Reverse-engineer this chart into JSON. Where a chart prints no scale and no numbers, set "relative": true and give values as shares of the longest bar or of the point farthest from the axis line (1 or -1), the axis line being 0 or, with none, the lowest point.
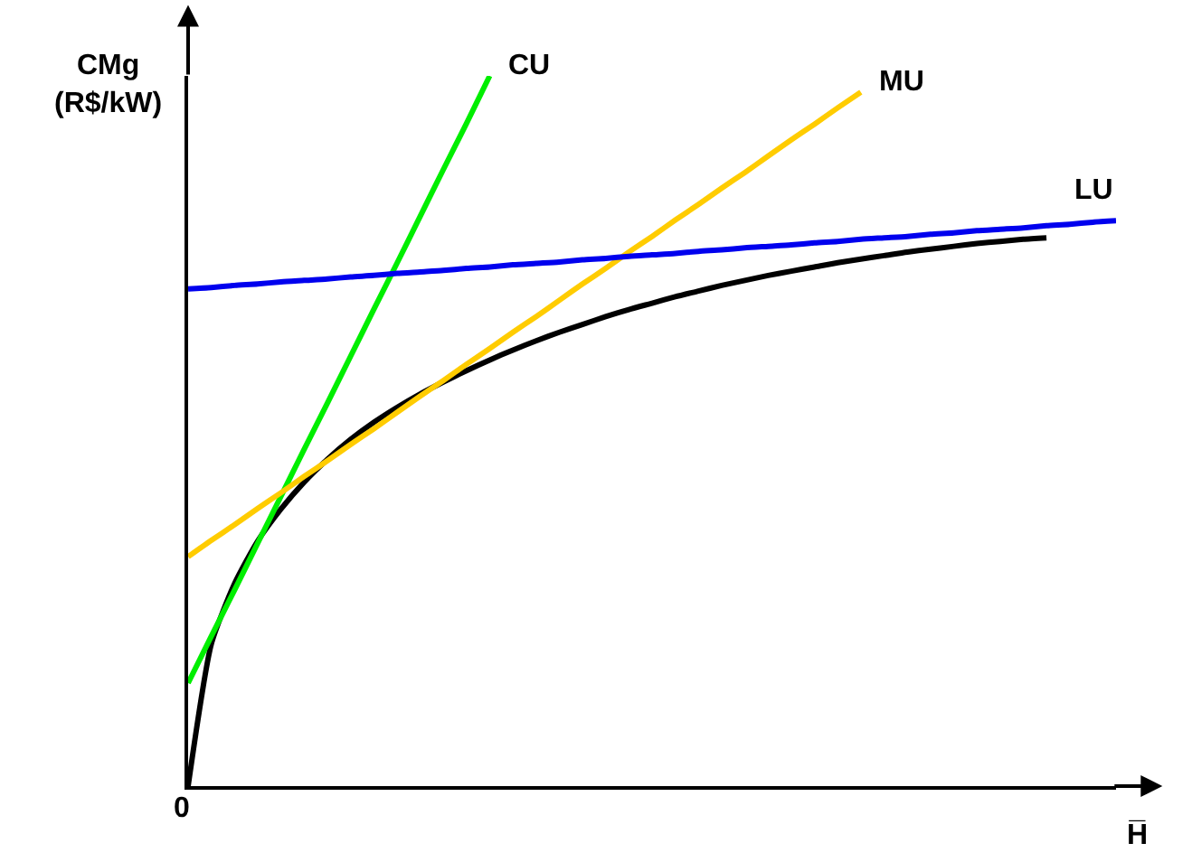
{
  "chart_data": {
    "type": "line",
    "relative": true,
    "ylabel": "CMg\n(R$/kW)",
    "xlabel": "H̅",
    "annotations": [
      "0"
    ],
    "categories": [
      null,
      null,
      null,
      null,
      null,
      null,
      null,
      null,
      null,
      null,
      null,
      null,
      null,
      null,
      null,
      null,
      null,
      null,
      null,
      null,
      null,
      null,
      null,
      null,
      null,
      null,
      null,
      null,
      null,
      null,
      null,
      null,
      null,
      null,
      null,
      null,
      null,
      null,
      null,
      null,
      null
    ],
    "series": [
      {
        "color": "#000000",
        "values": [
          0,
          0.2,
          0.285,
          0.345,
          0.39,
          0.428,
          0.46,
          0.488,
          0.512,
          0.533,
          0.552,
          0.569,
          0.585,
          0.6,
          0.614,
          0.627,
          0.639,
          0.65,
          0.661,
          0.671,
          0.68,
          0.689,
          0.697,
          0.705,
          0.712,
          0.719,
          0.725,
          0.731,
          0.737,
          0.742,
          0.747,
          0.752,
          0.756,
          0.76,
          0.764,
          0.767,
          0.77,
          0.772,
          null,
          null,
          null
        ]
      },
      {
        "name": "CU",
        "color": "#00ee00",
        "values": [
          0.145,
          0.211,
          0.276,
          0.342,
          0.408,
          0.474,
          0.539,
          0.605,
          0.671,
          0.736,
          0.802,
          0.868,
          0.933,
          1,
          null,
          null,
          null,
          null,
          null,
          null,
          null,
          null,
          null,
          null,
          null,
          null,
          null,
          null,
          null,
          null,
          null,
          null,
          null,
          null,
          null,
          null,
          null,
          null,
          null,
          null,
          null
        ]
      },
      {
        "name": "MU",
        "color": "#ffcc00",
        "values": [
          0.323,
          0.346,
          0.368,
          0.391,
          0.413,
          0.436,
          0.458,
          0.481,
          0.503,
          0.526,
          0.549,
          0.571,
          0.594,
          0.616,
          0.639,
          0.661,
          0.684,
          0.707,
          0.729,
          0.752,
          0.774,
          0.797,
          0.819,
          0.842,
          0.864,
          0.887,
          0.91,
          0.932,
          0.955,
          0.977,
          null,
          null,
          null,
          null,
          null,
          null,
          null,
          null,
          null,
          null,
          null
        ]
      },
      {
        "name": "LU",
        "color": "#0000ee",
        "values": [
          0.7,
          0.702,
          0.705,
          0.707,
          0.71,
          0.712,
          0.714,
          0.717,
          0.719,
          0.722,
          0.724,
          0.726,
          0.729,
          0.731,
          0.734,
          0.736,
          0.738,
          0.741,
          0.743,
          0.746,
          0.748,
          0.75,
          0.753,
          0.755,
          0.758,
          0.76,
          0.762,
          0.765,
          0.767,
          0.77,
          0.772,
          0.774,
          0.777,
          0.779,
          0.782,
          0.784,
          0.786,
          0.789,
          0.791,
          0.794,
          0.796
        ]
      }
    ]
  }
}
